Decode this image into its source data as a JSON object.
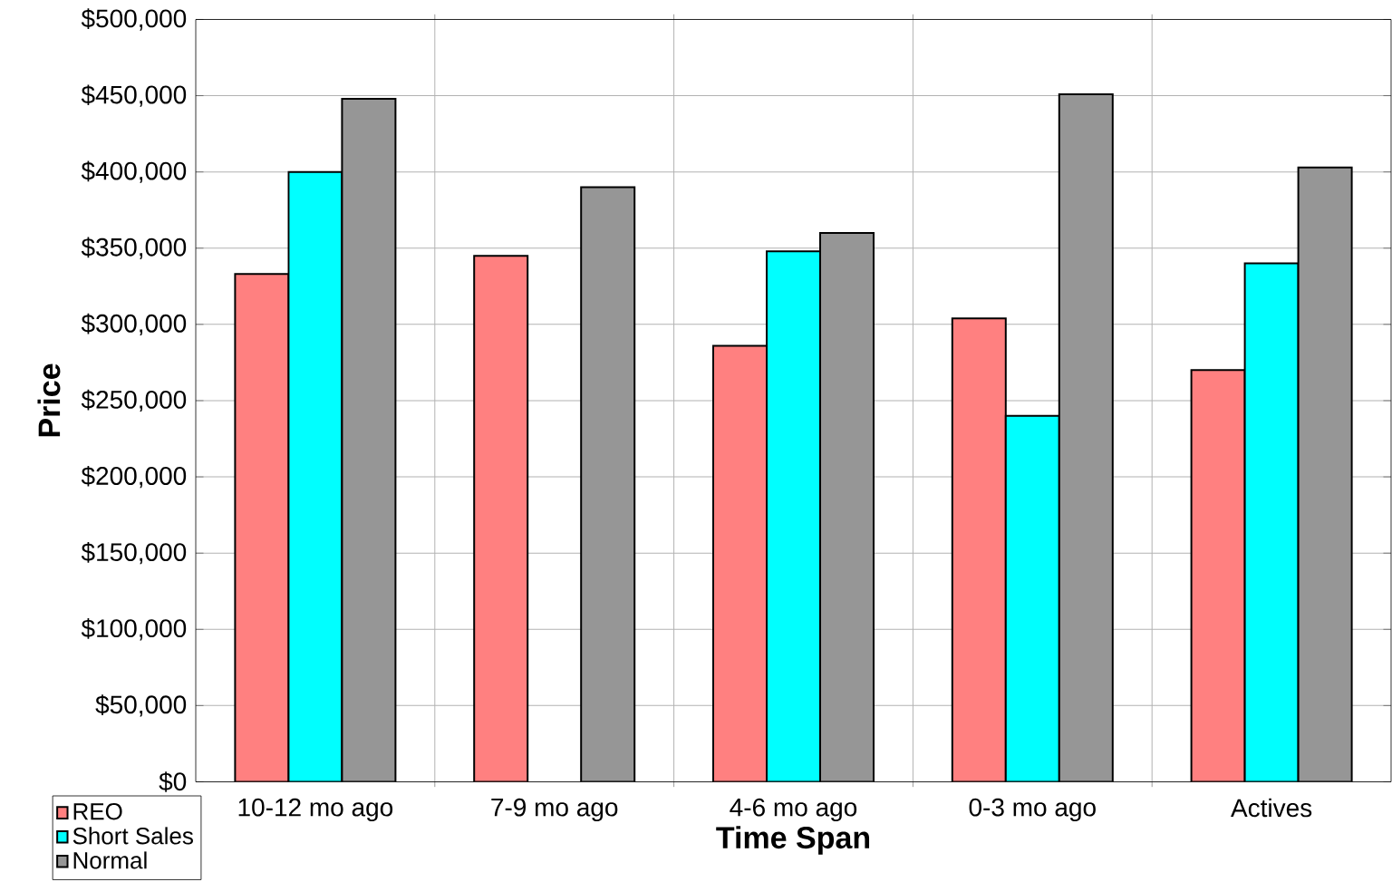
{
  "chart_data": {
    "type": "bar",
    "xlabel": "Time Span",
    "ylabel": "Price",
    "categories": [
      "10-12 mo ago",
      "7-9 mo ago",
      "4-6 mo ago",
      "0-3 mo ago",
      "Actives"
    ],
    "series": [
      {
        "name": "REO",
        "color": "#ff8080",
        "values": [
          333000,
          345000,
          286000,
          304000,
          270000
        ]
      },
      {
        "name": "Short Sales",
        "color": "#00ffff",
        "values": [
          400000,
          null,
          348000,
          240000,
          340000
        ]
      },
      {
        "name": "Normal",
        "color": "#969696",
        "values": [
          448000,
          390000,
          360000,
          451000,
          403000
        ]
      }
    ],
    "ylim": [
      0,
      500000
    ],
    "yticks": [
      {
        "value": 0,
        "label": "$0"
      },
      {
        "value": 50000,
        "label": "$50,000"
      },
      {
        "value": 100000,
        "label": "$100,000"
      },
      {
        "value": 150000,
        "label": "$150,000"
      },
      {
        "value": 200000,
        "label": "$200,000"
      },
      {
        "value": 250000,
        "label": "$250,000"
      },
      {
        "value": 300000,
        "label": "$300,000"
      },
      {
        "value": 350000,
        "label": "$350,000"
      },
      {
        "value": 400000,
        "label": "$400,000"
      },
      {
        "value": 450000,
        "label": "$450,000"
      },
      {
        "value": 500000,
        "label": "$500,000"
      }
    ],
    "grid": true,
    "legend": "bottom left"
  }
}
